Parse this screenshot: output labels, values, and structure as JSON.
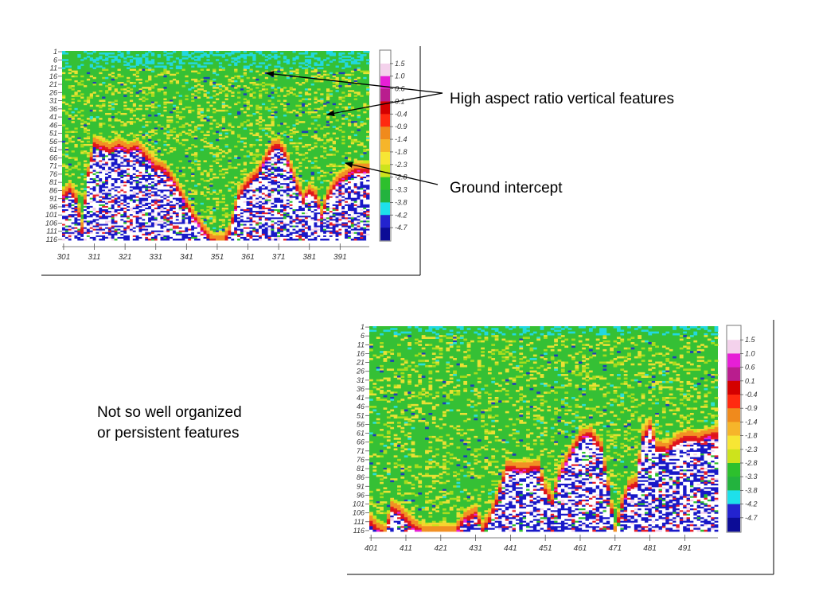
{
  "annotations": {
    "vertical_features": "High aspect ratio vertical features",
    "ground_intercept": "Ground intercept",
    "not_organized": [
      "Not so well organized",
      "or persistent features"
    ]
  },
  "colorbar": {
    "levels": [
      "1.5",
      "1.0",
      "0.6",
      "0.1",
      "-0.4",
      "-0.9",
      "-1.4",
      "-1.8",
      "-2.3",
      "-2.8",
      "-3.3",
      "-3.8",
      "-4.2",
      "-4.7"
    ],
    "colors": [
      "#ffffff",
      "#f4d2ec",
      "#e61fd6",
      "#b91d8e",
      "#d40000",
      "#ff2a10",
      "#f08a1c",
      "#f6b52a",
      "#f7e634",
      "#cde31c",
      "#2dc02d",
      "#23b33e",
      "#1ee0ea",
      "#2323cf",
      "#0c0c96"
    ]
  },
  "chart_data": [
    {
      "type": "heatmap",
      "x_ticks": [
        "301",
        "311",
        "321",
        "331",
        "341",
        "351",
        "361",
        "371",
        "381",
        "391"
      ],
      "y_ticks": [
        "1",
        "6",
        "11",
        "16",
        "21",
        "26",
        "31",
        "36",
        "41",
        "46",
        "51",
        "56",
        "61",
        "66",
        "71",
        "76",
        "81",
        "86",
        "91",
        "96",
        "101",
        "106",
        "111",
        "116"
      ],
      "xlim": [
        301,
        400
      ],
      "ylim": [
        1,
        116
      ],
      "ground_profile": {
        "x": [
          301,
          303,
          305,
          307,
          309,
          311,
          313,
          316,
          319,
          322,
          325,
          328,
          331,
          334,
          337,
          340,
          343,
          346,
          349,
          351,
          353,
          355,
          358,
          361,
          364,
          367,
          369,
          371,
          373,
          375,
          377,
          379,
          381,
          383,
          385,
          387,
          389,
          391,
          393,
          396,
          400
        ],
        "row": [
          88,
          84,
          90,
          108,
          74,
          56,
          58,
          60,
          57,
          60,
          58,
          64,
          70,
          72,
          80,
          90,
          100,
          108,
          115,
          116,
          116,
          110,
          88,
          80,
          75,
          65,
          58,
          57,
          62,
          72,
          82,
          90,
          85,
          88,
          100,
          88,
          82,
          78,
          76,
          72,
          72
        ]
      }
    },
    {
      "type": "heatmap",
      "x_ticks": [
        "401",
        "411",
        "421",
        "431",
        "441",
        "451",
        "461",
        "471",
        "481",
        "491"
      ],
      "y_ticks": [
        "1",
        "6",
        "11",
        "16",
        "21",
        "26",
        "31",
        "36",
        "41",
        "46",
        "51",
        "56",
        "61",
        "66",
        "71",
        "76",
        "81",
        "86",
        "91",
        "96",
        "101",
        "106",
        "111",
        "116"
      ],
      "xlim": [
        401,
        500
      ],
      "ylim": [
        1,
        116
      ],
      "ground_profile": {
        "x": [
          401,
          403,
          405,
          407,
          409,
          411,
          413,
          416,
          419,
          422,
          425,
          428,
          431,
          433,
          435,
          437,
          440,
          443,
          446,
          449,
          451,
          453,
          455,
          458,
          461,
          464,
          467,
          469,
          471,
          473,
          475,
          477,
          479,
          481,
          483,
          486,
          489,
          492,
          495,
          500
        ],
        "row": [
          110,
          114,
          116,
          102,
          104,
          108,
          112,
          116,
          116,
          116,
          116,
          108,
          105,
          114,
          108,
          98,
          79,
          80,
          80,
          79,
          92,
          98,
          84,
          72,
          62,
          60,
          68,
          90,
          116,
          100,
          90,
          88,
          62,
          56,
          68,
          69,
          64,
          62,
          63,
          60
        ]
      }
    }
  ]
}
